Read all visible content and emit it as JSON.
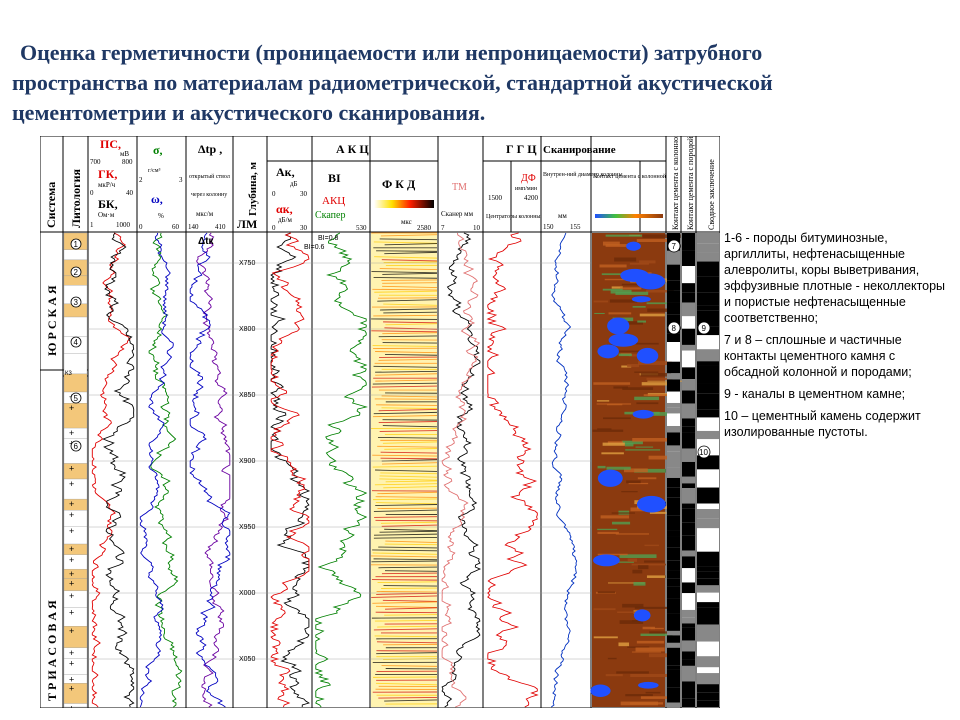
{
  "title": {
    "line1": "Оценка герметичности (проницаемости или непроницаемости) затрубного",
    "line2": "пространства по материалам радиометрической, стандартной акустической",
    "line3": "цементометрии и акустического сканирования."
  },
  "headers": {
    "system": "Система",
    "lithology": "Литология",
    "ps": "ПС,",
    "ps_unit": "мВ",
    "ps_min": "700",
    "ps_max": "800",
    "gk": "ГК,",
    "gk_unit": "мкР/ч",
    "gk_min": "0",
    "gk_max": "40",
    "bk": "БК,",
    "bk_unit": "Ом·м",
    "bk_min": "1",
    "bk_max": "1000",
    "sigma": "σ,",
    "sigma_unit": "г/см³",
    "sigma_min": "2",
    "sigma_max": "3",
    "omega": "ω,",
    "omega_unit": "%",
    "omega_min": "0",
    "omega_max": "60",
    "dtp": "Δtp ,",
    "dtp_open": "открытый ствол",
    "dtp_through": "через колонну",
    "dtp_unit": "мкс/м",
    "dtp_min": "140",
    "dtp_max": "410",
    "depth": "Глубина, м",
    "lm": "ЛМ",
    "akc": "А К Ц",
    "ak": "Ак,",
    "ak_unit": "дБ",
    "ak_min": "0",
    "ak_max": "30",
    "alpha": "αк,",
    "alpha_unit": "дБ/м",
    "alpha_min": "0",
    "alpha_max": "30",
    "bi": "BI",
    "akc_short": "АКЦ",
    "scaper": "Скапер",
    "fkd": "Ф К Д",
    "fkd_unit": "мкс",
    "fkd_min": "530",
    "fkd_max": "2580",
    "ggc": "Г Г Ц",
    "tm": "ТМ",
    "df": "ДФ",
    "df_unit": "имп/мин",
    "df_min": "1500",
    "df_max": "4200",
    "scaner_mm": "Сканер мм",
    "scaner_min": "7",
    "scaner_max": "10",
    "centr": "Центраторы колонны",
    "scan": "Сканирование",
    "inner_diam": "Внутрен-ний диаметр колонны",
    "inner_unit": "мм",
    "inner_min": "150",
    "inner_max": "155",
    "contact_cement": "Контакт цемента с колонной",
    "contact_col": "Контакт цемента с колонной",
    "contact_rock": "Контакт цемента с породой",
    "summary": "Сводное заключение"
  },
  "system_labels": {
    "jura": "Ю Р С К А Я",
    "trias": "Т Р И А С О В А Я",
    "ku": "К3"
  },
  "annotations": {
    "bi_08": "BI=0.8",
    "bi_06": "BI=0.6",
    "dtk": "Δtк"
  },
  "depth_marks": [
    "X750",
    "X800",
    "X850",
    "X900",
    "X950",
    "X000",
    "X050"
  ],
  "lith_numbers": [
    "1",
    "2",
    "3",
    "4",
    "5",
    "6"
  ],
  "contact_numbers": [
    "7",
    "8",
    "9",
    "10"
  ],
  "legend": {
    "item1": "1-6 - породы битуминозные, аргиллиты, нефтенасыщенные алевролиты, коры выветривания, эффузивные плотные - неколлекторы и пористые нефтенасыщенные соответственно;",
    "item2": "7 и 8 – сплошные и частичные контакты цементного камня с обсадной колонной и породами;",
    "item3": "9 - каналы в цементном камне;",
    "item4": "10 – цементный камень содержит изолированные пустоты."
  },
  "colors": {
    "title": "#1f3864",
    "ps": "#e00000",
    "gk": "#0000c0",
    "sigma": "#008000",
    "scan_bg": "#8b3a0f",
    "scan_anomaly": "#2050ff",
    "lith_yellow": "#f3c77a"
  }
}
